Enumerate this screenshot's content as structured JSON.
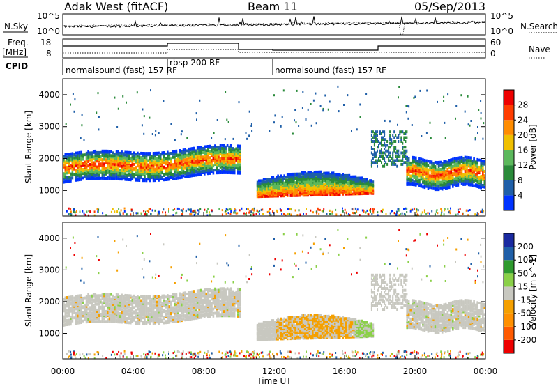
{
  "header": {
    "site": "Adak West (fitACF)",
    "beam": "Beam 11",
    "date": "05/Sep/2013"
  },
  "noise_panel": {
    "left_label": "N.Sky",
    "right_label": "N.Search",
    "left_ticks": [
      "10^5",
      "10^0"
    ],
    "right_ticks": [
      "10^5",
      "10^0"
    ]
  },
  "freq_panel": {
    "left_label_1": "Freq.",
    "left_label_2": "[MHz]",
    "right_label": "Nave",
    "left_ticks": [
      "18",
      "8"
    ],
    "right_ticks": [
      "60",
      "0"
    ]
  },
  "cpid": {
    "label": "CPID",
    "segments": [
      {
        "text": "normalsound (fast) 157 RF",
        "start_hour": 0
      },
      {
        "text": "rbsp 200 RF",
        "start_hour": 6
      },
      {
        "text": "normalsound (fast) 157 RF",
        "start_hour": 12
      }
    ]
  },
  "chart_data": [
    {
      "type": "heatmap",
      "panel": "power",
      "ylabel": "Slant Range [km]",
      "xlabel": "",
      "ylim": [
        200,
        4500
      ],
      "yticks": [
        1000,
        2000,
        3000,
        4000
      ],
      "xlim_hours": [
        0,
        24
      ],
      "colorbar": {
        "label": "Power [dB]",
        "ticks": [
          "28",
          "24",
          "20",
          "16",
          "12",
          "8",
          "4"
        ],
        "colors": [
          "#0033ff",
          "#1f5fa8",
          "#2a8a3a",
          "#5cb85c",
          "#f0c000",
          "#ff8c00",
          "#ff3c00",
          "#ee0000"
        ]
      },
      "features": [
        {
          "name": "main_band",
          "hours": [
            0,
            10
          ],
          "range_km": [
            1500,
            2100
          ]
        },
        {
          "name": "main_band",
          "hours": [
            19.5,
            24
          ],
          "range_km": [
            1400,
            2000
          ]
        },
        {
          "name": "dayside_patch",
          "hours": [
            11,
            17.5
          ],
          "range_km": [
            800,
            1600
          ]
        }
      ]
    },
    {
      "type": "heatmap",
      "panel": "velocity",
      "ylabel": "Slant Range [km]",
      "xlabel": "Time UT",
      "ylim": [
        200,
        4500
      ],
      "yticks": [
        1000,
        2000,
        3000,
        4000
      ],
      "xlim_hours": [
        0,
        24
      ],
      "xticklabels": [
        "00:00",
        "04:00",
        "08:00",
        "12:00",
        "16:00",
        "20:00",
        "00:00"
      ],
      "colorbar": {
        "label": "Velocity [m s^-1]",
        "ticks": [
          "200",
          "100",
          "50",
          "15",
          "-15",
          "-50",
          "-100",
          "-200"
        ],
        "colors": [
          "#ee0000",
          "#ff5a00",
          "#ff9000",
          "#f5a000",
          "#c8c8c0",
          "#8ad048",
          "#2e9a2e",
          "#1f5fa8",
          "#1a2aa0"
        ]
      }
    }
  ]
}
